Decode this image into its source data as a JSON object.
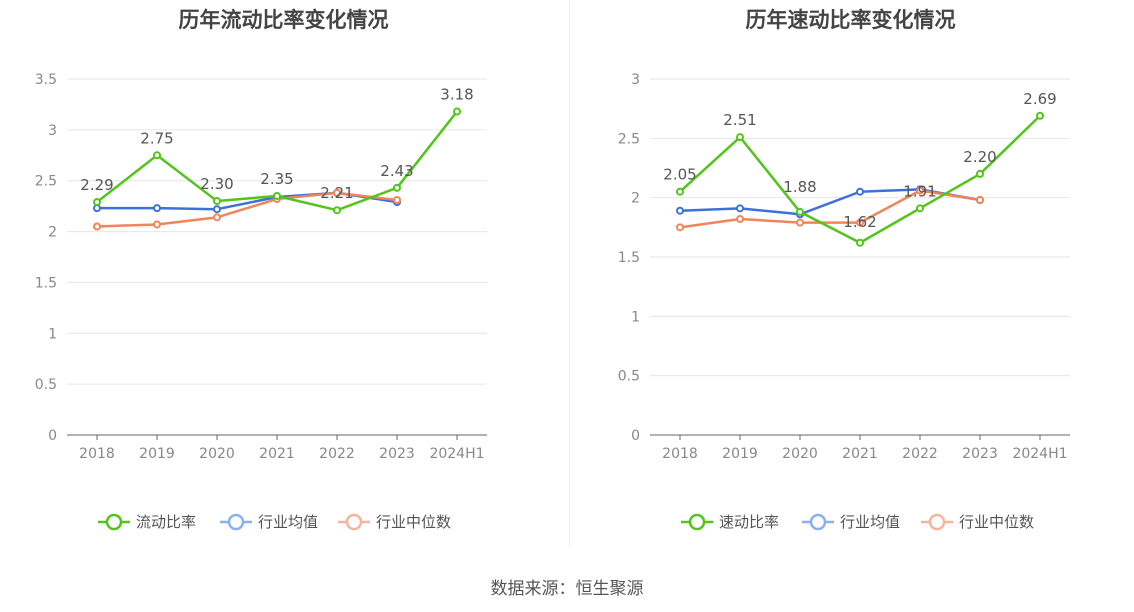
{
  "source_text": "数据来源：恒生聚源",
  "colors": {
    "main": "#52c41a",
    "avg": "#3b71d8",
    "median": "#f0855a",
    "avg_legend": "#8ab0f0",
    "median_legend": "#f7b49a",
    "axis_text": "#888888",
    "grid": "#e6e6e6",
    "label_text": "#555555"
  },
  "chart_data": [
    {
      "type": "line",
      "title": "历年流动比率变化情况",
      "categories": [
        "2018",
        "2019",
        "2020",
        "2021",
        "2022",
        "2023",
        "2024H1"
      ],
      "y_ticks": [
        "0",
        "0.5",
        "1",
        "1.5",
        "2",
        "2.5",
        "3",
        "3.5"
      ],
      "ylim": [
        0,
        3.5
      ],
      "grid": true,
      "legend_position": "bottom",
      "series": [
        {
          "name": "流动比率",
          "key": "main",
          "values": [
            2.29,
            2.75,
            2.3,
            2.35,
            2.21,
            2.43,
            3.18
          ],
          "labels": [
            "2.29",
            "2.75",
            "2.30",
            "2.35",
            "2.21",
            "2.43",
            "3.18"
          ]
        },
        {
          "name": "行业均值",
          "key": "avg",
          "values": [
            2.23,
            2.23,
            2.22,
            2.34,
            2.38,
            2.29,
            null
          ]
        },
        {
          "name": "行业中位数",
          "key": "median",
          "values": [
            2.05,
            2.07,
            2.14,
            2.32,
            2.38,
            2.31,
            null
          ]
        }
      ]
    },
    {
      "type": "line",
      "title": "历年速动比率变化情况",
      "categories": [
        "2018",
        "2019",
        "2020",
        "2021",
        "2022",
        "2023",
        "2024H1"
      ],
      "y_ticks": [
        "0",
        "0.5",
        "1",
        "1.5",
        "2",
        "2.5",
        "3"
      ],
      "ylim": [
        0,
        3
      ],
      "grid": true,
      "legend_position": "bottom",
      "series": [
        {
          "name": "速动比率",
          "key": "main",
          "values": [
            2.05,
            2.51,
            1.88,
            1.62,
            1.91,
            2.2,
            2.69
          ],
          "labels": [
            "2.05",
            "2.51",
            "1.88",
            "1.62",
            "1.91",
            "2.20",
            "2.69"
          ]
        },
        {
          "name": "行业均值",
          "key": "avg",
          "values": [
            1.89,
            1.91,
            1.86,
            2.05,
            2.07,
            1.98,
            null
          ]
        },
        {
          "name": "行业中位数",
          "key": "median",
          "values": [
            1.75,
            1.82,
            1.79,
            1.79,
            2.06,
            1.98,
            null
          ]
        }
      ]
    }
  ]
}
